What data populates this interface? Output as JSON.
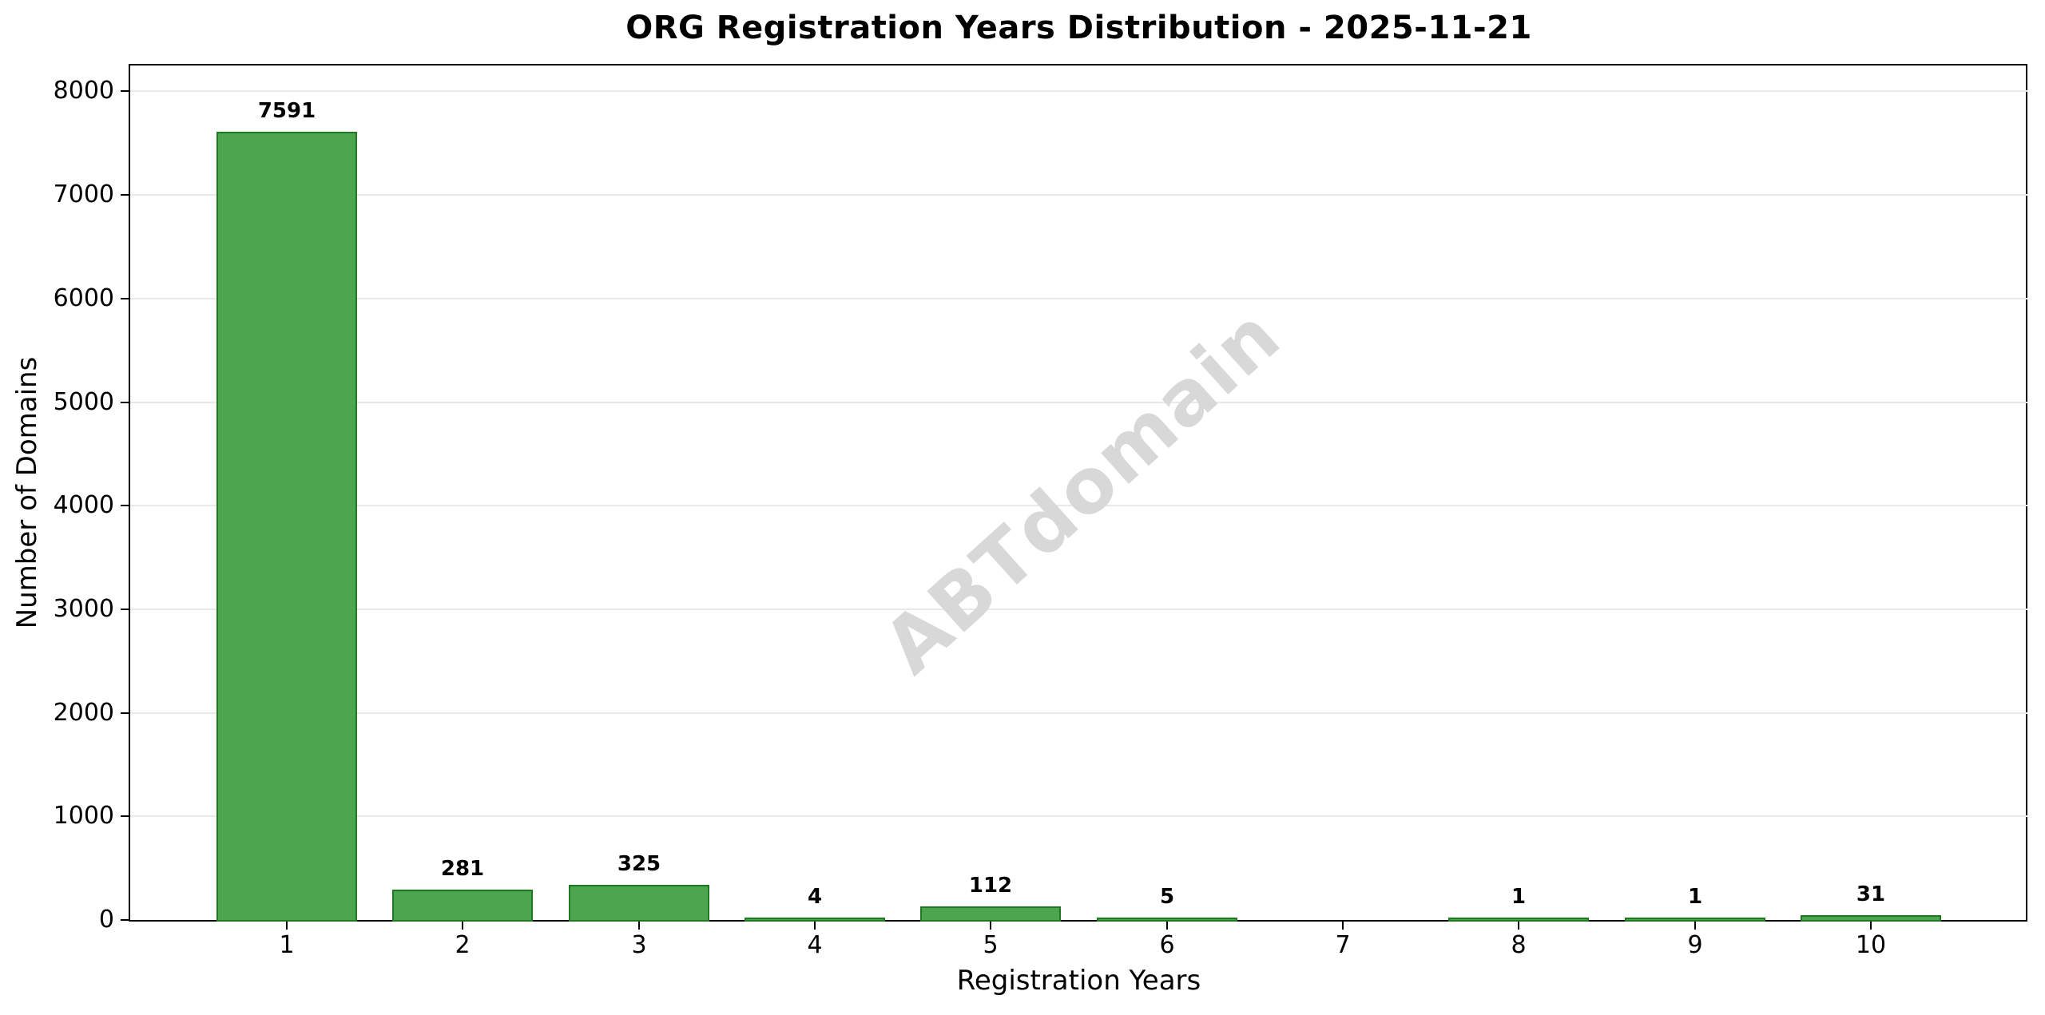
{
  "chart_data": {
    "type": "bar",
    "title": "ORG Registration Years Distribution - 2025-11-21",
    "xlabel": "Registration Years",
    "ylabel": "Number of Domains",
    "categories": [
      "1",
      "2",
      "3",
      "4",
      "5",
      "6",
      "7",
      "8",
      "9",
      "10"
    ],
    "values": [
      7591,
      281,
      325,
      4,
      112,
      5,
      0,
      1,
      1,
      31
    ],
    "bar_labels": [
      "7591",
      "281",
      "325",
      "4",
      "112",
      "5",
      "",
      "1",
      "1",
      "31"
    ],
    "ylim": [
      0,
      8250
    ],
    "yticks": [
      0,
      1000,
      2000,
      3000,
      4000,
      5000,
      6000,
      7000,
      8000
    ],
    "grid": "horizontal",
    "legend": "none",
    "watermark": "ABTdomain",
    "colors": {
      "bar_fill": "#4ca64f",
      "bar_edge": "#1f7a1f",
      "grid_line": "#e9e9e9",
      "watermark_text": "#d8d8d8",
      "axis": "#000000"
    }
  }
}
